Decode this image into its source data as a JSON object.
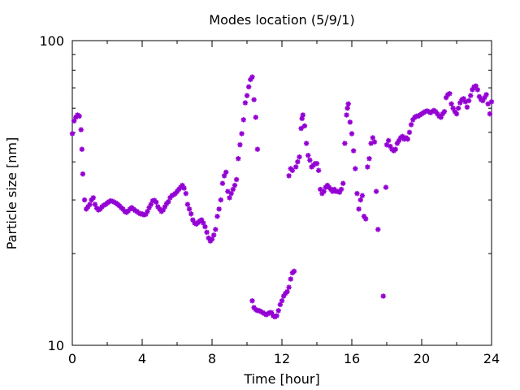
{
  "chart_data": {
    "type": "scatter",
    "title": "Modes location (5/9/1)",
    "xlabel": "Time [hour]",
    "ylabel": "Particle size [nm]",
    "xlim": [
      0,
      24
    ],
    "ylim": [
      10,
      100
    ],
    "y_scale": "log",
    "x_ticks": [
      0,
      4,
      8,
      12,
      16,
      20,
      24
    ],
    "x_tick_labels": [
      "0",
      "4",
      "8",
      "12",
      "16",
      "20",
      "24"
    ],
    "y_ticks": [
      10,
      100
    ],
    "y_tick_labels": [
      "10",
      "100"
    ],
    "grid": false,
    "legend": "none",
    "marker_color": "#9400d3",
    "series": [
      {
        "points": [
          [
            0.0,
            49.5
          ],
          [
            0.1,
            54.5
          ],
          [
            0.2,
            56.0
          ],
          [
            0.3,
            57.0
          ],
          [
            0.4,
            56.5
          ],
          [
            0.5,
            51.0
          ],
          [
            0.55,
            44.0
          ],
          [
            0.6,
            36.5
          ],
          [
            0.7,
            30.0
          ],
          [
            0.8,
            28.0
          ],
          [
            0.9,
            28.5
          ],
          [
            1.0,
            29.0
          ],
          [
            1.1,
            30.0
          ],
          [
            1.2,
            30.5
          ],
          [
            1.3,
            29.0
          ],
          [
            1.4,
            28.2
          ],
          [
            1.5,
            27.8
          ],
          [
            1.6,
            28.0
          ],
          [
            1.7,
            28.5
          ],
          [
            1.8,
            28.8
          ],
          [
            1.9,
            29.0
          ],
          [
            2.0,
            29.3
          ],
          [
            2.1,
            29.6
          ],
          [
            2.2,
            29.8
          ],
          [
            2.3,
            29.7
          ],
          [
            2.4,
            29.5
          ],
          [
            2.5,
            29.3
          ],
          [
            2.6,
            29.0
          ],
          [
            2.7,
            28.7
          ],
          [
            2.8,
            28.3
          ],
          [
            2.9,
            28.0
          ],
          [
            3.0,
            27.5
          ],
          [
            3.1,
            27.3
          ],
          [
            3.2,
            27.6
          ],
          [
            3.3,
            28.0
          ],
          [
            3.4,
            28.3
          ],
          [
            3.5,
            28.0
          ],
          [
            3.6,
            27.7
          ],
          [
            3.7,
            27.5
          ],
          [
            3.8,
            27.2
          ],
          [
            3.9,
            27.0
          ],
          [
            4.0,
            27.0
          ],
          [
            4.1,
            26.8
          ],
          [
            4.2,
            26.9
          ],
          [
            4.3,
            27.5
          ],
          [
            4.4,
            28.3
          ],
          [
            4.5,
            29.0
          ],
          [
            4.6,
            29.8
          ],
          [
            4.7,
            29.9
          ],
          [
            4.8,
            29.5
          ],
          [
            4.9,
            28.5
          ],
          [
            5.0,
            28.0
          ],
          [
            5.1,
            27.5
          ],
          [
            5.2,
            27.8
          ],
          [
            5.3,
            28.5
          ],
          [
            5.4,
            29.2
          ],
          [
            5.5,
            29.6
          ],
          [
            5.6,
            30.5
          ],
          [
            5.7,
            31.0
          ],
          [
            5.8,
            31.2
          ],
          [
            5.9,
            31.5
          ],
          [
            6.0,
            32.0
          ],
          [
            6.1,
            32.5
          ],
          [
            6.2,
            33.0
          ],
          [
            6.3,
            33.5
          ],
          [
            6.4,
            32.8
          ],
          [
            6.5,
            31.5
          ],
          [
            6.6,
            29.0
          ],
          [
            6.7,
            28.0
          ],
          [
            6.8,
            27.0
          ],
          [
            6.9,
            25.8
          ],
          [
            7.0,
            25.2
          ],
          [
            7.1,
            25.0
          ],
          [
            7.2,
            25.3
          ],
          [
            7.3,
            25.6
          ],
          [
            7.4,
            25.8
          ],
          [
            7.5,
            25.2
          ],
          [
            7.6,
            24.5
          ],
          [
            7.7,
            23.5
          ],
          [
            7.8,
            22.5
          ],
          [
            7.9,
            22.0
          ],
          [
            8.0,
            22.3
          ],
          [
            8.1,
            23.0
          ],
          [
            8.2,
            24.0
          ],
          [
            8.3,
            26.5
          ],
          [
            8.4,
            28.0
          ],
          [
            8.5,
            30.0
          ],
          [
            8.6,
            34.0
          ],
          [
            8.7,
            36.0
          ],
          [
            8.8,
            37.0
          ],
          [
            8.9,
            32.0
          ],
          [
            9.0,
            30.5
          ],
          [
            9.1,
            31.5
          ],
          [
            9.2,
            32.5
          ],
          [
            9.3,
            33.5
          ],
          [
            9.4,
            35.0
          ],
          [
            9.5,
            41.0
          ],
          [
            9.6,
            45.5
          ],
          [
            9.7,
            49.5
          ],
          [
            9.8,
            55.0
          ],
          [
            9.9,
            62.5
          ],
          [
            10.0,
            66.0
          ],
          [
            10.1,
            70.5
          ],
          [
            10.2,
            74.5
          ],
          [
            10.3,
            76.0
          ],
          [
            10.4,
            64.0
          ],
          [
            10.5,
            56.0
          ],
          [
            10.6,
            44.0
          ],
          [
            10.3,
            14.0
          ],
          [
            10.4,
            13.3
          ],
          [
            10.5,
            13.1
          ],
          [
            10.6,
            13.0
          ],
          [
            10.7,
            13.0
          ],
          [
            10.8,
            12.9
          ],
          [
            10.9,
            12.8
          ],
          [
            11.0,
            12.7
          ],
          [
            11.1,
            12.6
          ],
          [
            11.2,
            12.7
          ],
          [
            11.3,
            12.8
          ],
          [
            11.4,
            12.8
          ],
          [
            11.5,
            12.5
          ],
          [
            11.6,
            12.4
          ],
          [
            11.7,
            12.5
          ],
          [
            11.8,
            13.0
          ],
          [
            11.9,
            13.6
          ],
          [
            12.0,
            14.0
          ],
          [
            12.1,
            14.5
          ],
          [
            12.2,
            14.8
          ],
          [
            12.3,
            15.0
          ],
          [
            12.4,
            15.5
          ],
          [
            12.5,
            16.5
          ],
          [
            12.6,
            17.3
          ],
          [
            12.7,
            17.5
          ],
          [
            12.4,
            36.0
          ],
          [
            12.5,
            38.0
          ],
          [
            12.6,
            37.5
          ],
          [
            12.8,
            38.5
          ],
          [
            12.9,
            40.0
          ],
          [
            13.0,
            41.5
          ],
          [
            13.1,
            51.5
          ],
          [
            13.15,
            55.5
          ],
          [
            13.2,
            57.0
          ],
          [
            13.3,
            52.5
          ],
          [
            13.4,
            46.0
          ],
          [
            13.5,
            42.0
          ],
          [
            13.6,
            40.5
          ],
          [
            13.7,
            38.5
          ],
          [
            13.8,
            39.0
          ],
          [
            13.9,
            39.5
          ],
          [
            14.0,
            39.5
          ],
          [
            14.1,
            37.5
          ],
          [
            14.2,
            32.5
          ],
          [
            14.3,
            31.5
          ],
          [
            14.4,
            32.0
          ],
          [
            14.5,
            33.0
          ],
          [
            14.6,
            33.5
          ],
          [
            14.7,
            33.0
          ],
          [
            14.8,
            32.5
          ],
          [
            14.9,
            32.0
          ],
          [
            15.0,
            32.5
          ],
          [
            15.1,
            32.0
          ],
          [
            15.2,
            32.0
          ],
          [
            15.3,
            31.8
          ],
          [
            15.4,
            32.5
          ],
          [
            15.5,
            34.0
          ],
          [
            15.6,
            46.0
          ],
          [
            15.7,
            57.0
          ],
          [
            15.75,
            60.0
          ],
          [
            15.8,
            62.0
          ],
          [
            15.9,
            54.0
          ],
          [
            16.0,
            49.5
          ],
          [
            16.1,
            43.5
          ],
          [
            16.2,
            38.0
          ],
          [
            16.3,
            31.5
          ],
          [
            16.4,
            28.0
          ],
          [
            16.5,
            30.0
          ],
          [
            16.6,
            31.0
          ],
          [
            16.7,
            26.5
          ],
          [
            16.8,
            26.0
          ],
          [
            16.9,
            38.5
          ],
          [
            17.0,
            41.0
          ],
          [
            17.1,
            46.0
          ],
          [
            17.2,
            48.0
          ],
          [
            17.3,
            46.5
          ],
          [
            17.4,
            32.0
          ],
          [
            17.5,
            24.0
          ],
          [
            17.8,
            14.5
          ],
          [
            17.95,
            33.0
          ],
          [
            18.0,
            45.5
          ],
          [
            18.1,
            47.0
          ],
          [
            18.2,
            45.0
          ],
          [
            18.3,
            44.0
          ],
          [
            18.4,
            43.5
          ],
          [
            18.5,
            44.0
          ],
          [
            18.6,
            46.0
          ],
          [
            18.7,
            47.0
          ],
          [
            18.8,
            48.0
          ],
          [
            18.9,
            48.5
          ],
          [
            19.0,
            47.5
          ],
          [
            19.1,
            48.0
          ],
          [
            19.2,
            47.5
          ],
          [
            19.3,
            50.0
          ],
          [
            19.4,
            53.0
          ],
          [
            19.5,
            55.0
          ],
          [
            19.6,
            56.0
          ],
          [
            19.7,
            56.5
          ],
          [
            19.8,
            56.5
          ],
          [
            19.9,
            57.0
          ],
          [
            20.0,
            57.5
          ],
          [
            20.1,
            58.0
          ],
          [
            20.2,
            58.5
          ],
          [
            20.3,
            58.8
          ],
          [
            20.4,
            58.5
          ],
          [
            20.5,
            58.0
          ],
          [
            20.6,
            58.5
          ],
          [
            20.7,
            59.0
          ],
          [
            20.8,
            58.5
          ],
          [
            20.9,
            57.5
          ],
          [
            21.0,
            56.5
          ],
          [
            21.1,
            56.0
          ],
          [
            21.2,
            57.5
          ],
          [
            21.3,
            58.5
          ],
          [
            21.4,
            65.0
          ],
          [
            21.5,
            66.5
          ],
          [
            21.6,
            67.0
          ],
          [
            21.7,
            62.0
          ],
          [
            21.8,
            60.0
          ],
          [
            21.9,
            58.5
          ],
          [
            22.0,
            57.5
          ],
          [
            22.1,
            60.0
          ],
          [
            22.2,
            62.5
          ],
          [
            22.3,
            64.0
          ],
          [
            22.4,
            64.5
          ],
          [
            22.5,
            63.0
          ],
          [
            22.6,
            60.5
          ],
          [
            22.7,
            63.5
          ],
          [
            22.8,
            66.0
          ],
          [
            22.9,
            69.0
          ],
          [
            23.0,
            70.5
          ],
          [
            23.1,
            71.0
          ],
          [
            23.2,
            69.0
          ],
          [
            23.3,
            65.5
          ],
          [
            23.4,
            64.0
          ],
          [
            23.5,
            63.5
          ],
          [
            23.6,
            65.0
          ],
          [
            23.7,
            66.5
          ],
          [
            23.8,
            62.0
          ],
          [
            23.9,
            57.5
          ],
          [
            24.0,
            63.0
          ],
          [
            24.1,
            68.5
          ]
        ]
      }
    ]
  }
}
